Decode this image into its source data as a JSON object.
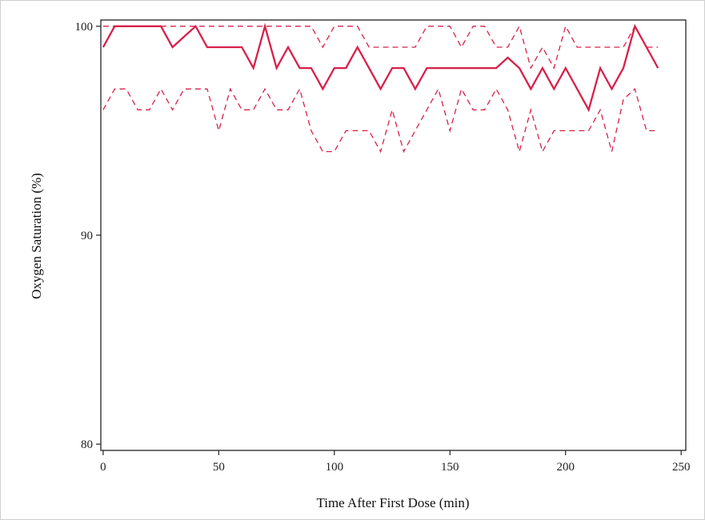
{
  "chart_data": {
    "type": "line",
    "title": "",
    "xlabel": "Time After First Dose (min)",
    "ylabel": "Oxygen Saturation (%)",
    "xlim": [
      -1,
      252
    ],
    "ylim": [
      79.7,
      100.3
    ],
    "xticks": [
      0,
      50,
      100,
      150,
      200,
      250
    ],
    "yticks": [
      80,
      90,
      100
    ],
    "grid": false,
    "legend": "none",
    "series_color": "#d8204a",
    "series": [
      {
        "style": "solid",
        "points": [
          [
            0,
            99
          ],
          [
            5,
            100
          ],
          [
            10,
            100
          ],
          [
            15,
            100
          ],
          [
            20,
            100
          ],
          [
            25,
            100
          ],
          [
            30,
            99
          ],
          [
            35,
            99.5
          ],
          [
            40,
            100
          ],
          [
            45,
            99
          ],
          [
            50,
            99
          ],
          [
            55,
            99
          ],
          [
            60,
            99
          ],
          [
            65,
            98
          ],
          [
            70,
            100
          ],
          [
            75,
            98
          ],
          [
            80,
            99
          ],
          [
            85,
            98
          ],
          [
            90,
            98
          ],
          [
            95,
            97
          ],
          [
            100,
            98
          ],
          [
            105,
            98
          ],
          [
            110,
            99
          ],
          [
            115,
            98
          ],
          [
            120,
            97
          ],
          [
            125,
            98
          ],
          [
            130,
            98
          ],
          [
            135,
            97
          ],
          [
            140,
            98
          ],
          [
            145,
            98
          ],
          [
            150,
            98
          ],
          [
            155,
            98
          ],
          [
            160,
            98
          ],
          [
            165,
            98
          ],
          [
            170,
            98
          ],
          [
            175,
            98.5
          ],
          [
            180,
            98
          ],
          [
            185,
            97
          ],
          [
            190,
            98
          ],
          [
            195,
            97
          ],
          [
            200,
            98
          ],
          [
            205,
            97
          ],
          [
            210,
            96
          ],
          [
            215,
            98
          ],
          [
            220,
            97
          ],
          [
            225,
            98
          ],
          [
            230,
            100
          ],
          [
            235,
            99
          ],
          [
            240,
            98
          ]
        ]
      },
      {
        "style": "dashed",
        "points": [
          [
            0,
            100
          ],
          [
            5,
            100
          ],
          [
            10,
            100
          ],
          [
            15,
            100
          ],
          [
            20,
            100
          ],
          [
            25,
            100
          ],
          [
            30,
            100
          ],
          [
            35,
            100
          ],
          [
            40,
            100
          ],
          [
            45,
            100
          ],
          [
            50,
            100
          ],
          [
            55,
            100
          ],
          [
            60,
            100
          ],
          [
            65,
            100
          ],
          [
            70,
            100
          ],
          [
            75,
            100
          ],
          [
            80,
            100
          ],
          [
            85,
            100
          ],
          [
            90,
            100
          ],
          [
            95,
            99
          ],
          [
            100,
            100
          ],
          [
            105,
            100
          ],
          [
            110,
            100
          ],
          [
            115,
            99
          ],
          [
            120,
            99
          ],
          [
            125,
            99
          ],
          [
            130,
            99
          ],
          [
            135,
            99
          ],
          [
            140,
            100
          ],
          [
            145,
            100
          ],
          [
            150,
            100
          ],
          [
            155,
            99
          ],
          [
            160,
            100
          ],
          [
            165,
            100
          ],
          [
            170,
            99
          ],
          [
            175,
            99
          ],
          [
            180,
            100
          ],
          [
            185,
            98
          ],
          [
            190,
            99
          ],
          [
            195,
            98
          ],
          [
            200,
            100
          ],
          [
            205,
            99
          ],
          [
            210,
            99
          ],
          [
            215,
            99
          ],
          [
            220,
            99
          ],
          [
            225,
            99
          ],
          [
            230,
            100
          ],
          [
            235,
            99
          ],
          [
            240,
            99
          ]
        ]
      },
      {
        "style": "dashed",
        "points": [
          [
            0,
            96
          ],
          [
            5,
            97
          ],
          [
            10,
            97
          ],
          [
            15,
            96
          ],
          [
            20,
            96
          ],
          [
            25,
            97
          ],
          [
            30,
            96
          ],
          [
            35,
            97
          ],
          [
            40,
            97
          ],
          [
            45,
            97
          ],
          [
            50,
            95
          ],
          [
            55,
            97
          ],
          [
            60,
            96
          ],
          [
            65,
            96
          ],
          [
            70,
            97
          ],
          [
            75,
            96
          ],
          [
            80,
            96
          ],
          [
            85,
            97
          ],
          [
            90,
            95
          ],
          [
            95,
            94
          ],
          [
            100,
            94
          ],
          [
            105,
            95
          ],
          [
            110,
            95
          ],
          [
            115,
            95
          ],
          [
            120,
            94
          ],
          [
            125,
            96
          ],
          [
            130,
            94
          ],
          [
            135,
            95
          ],
          [
            140,
            96
          ],
          [
            145,
            97
          ],
          [
            150,
            95
          ],
          [
            155,
            97
          ],
          [
            160,
            96
          ],
          [
            165,
            96
          ],
          [
            170,
            97
          ],
          [
            175,
            96
          ],
          [
            180,
            94
          ],
          [
            185,
            96
          ],
          [
            190,
            94
          ],
          [
            195,
            95
          ],
          [
            200,
            95
          ],
          [
            205,
            95
          ],
          [
            210,
            95
          ],
          [
            215,
            96
          ],
          [
            220,
            94
          ],
          [
            225,
            96.5
          ],
          [
            230,
            97
          ],
          [
            235,
            95
          ],
          [
            240,
            95
          ]
        ]
      }
    ]
  }
}
